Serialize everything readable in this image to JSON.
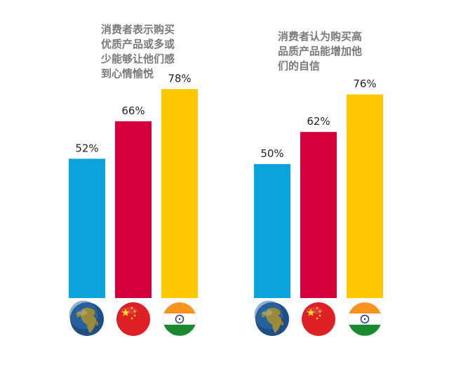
{
  "colors": {
    "world": "#0aa3dc",
    "china": "#d4003b",
    "india": "#fdc800"
  },
  "icons": [
    "globe-icon",
    "china-flag-icon",
    "india-flag-icon"
  ],
  "chart_data": [
    {
      "type": "bar",
      "title": "消费者表示购买\n优质产品或多或\n少能够让他们感\n到心情愉悦",
      "categories": [
        "world",
        "china",
        "india"
      ],
      "values": [
        52,
        66,
        78
      ],
      "value_labels": [
        "52%",
        "66%",
        "78%"
      ],
      "ylim": [
        0,
        100
      ],
      "grid": false,
      "legend": "flag icons below bars"
    },
    {
      "type": "bar",
      "title": "消费者认为购买高\n品质产品能增加他\n们的自信",
      "categories": [
        "world",
        "china",
        "india"
      ],
      "values": [
        50,
        62,
        76
      ],
      "value_labels": [
        "50%",
        "62%",
        "76%"
      ],
      "ylim": [
        0,
        100
      ],
      "grid": false,
      "legend": "flag icons below bars"
    }
  ]
}
